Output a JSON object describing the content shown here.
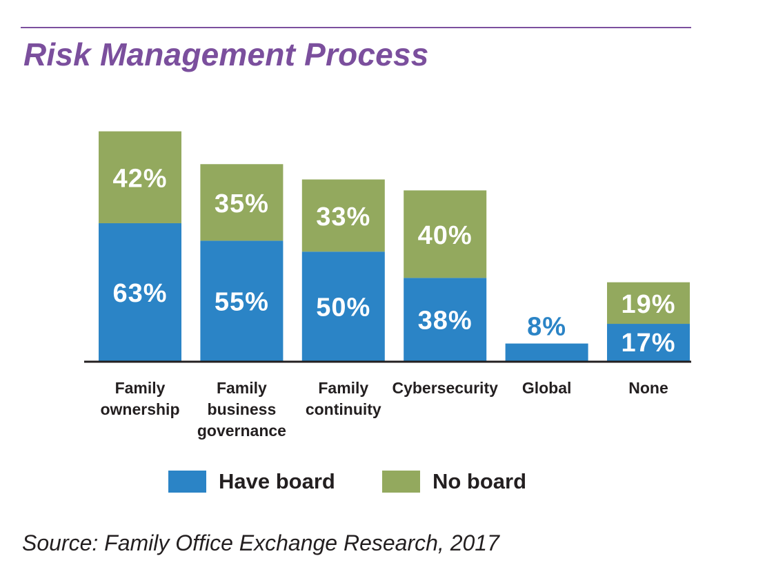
{
  "colors": {
    "title": "#7b4f9d",
    "rule": "#7b4f9d",
    "have_board": "#2b84c6",
    "no_board": "#93a95e",
    "axis": "#231f20",
    "text": "#231f20",
    "bar_label": "#ffffff"
  },
  "chart_data": {
    "type": "bar",
    "stacked": true,
    "title": "Risk Management Process",
    "categories": [
      [
        "Family",
        "ownership"
      ],
      [
        "Family",
        "business",
        "governance"
      ],
      [
        "Family",
        "continuity"
      ],
      [
        "Cybersecurity"
      ],
      [
        "Global"
      ],
      [
        "None"
      ]
    ],
    "series": [
      {
        "name": "Have board",
        "values": [
          63,
          55,
          50,
          38,
          8,
          17
        ],
        "labels": [
          "63%",
          "55%",
          "50%",
          "38%",
          "8%",
          "17%"
        ]
      },
      {
        "name": "No board",
        "values": [
          42,
          35,
          33,
          40,
          0,
          19
        ],
        "labels": [
          "42%",
          "35%",
          "33%",
          "40%",
          "",
          "19%"
        ]
      }
    ],
    "ylim": [
      0,
      105
    ],
    "grid": false,
    "legend_position": "bottom"
  },
  "legend": {
    "have_board": "Have board",
    "no_board": "No board"
  },
  "source": "Source: Family Office Exchange Research, 2017"
}
